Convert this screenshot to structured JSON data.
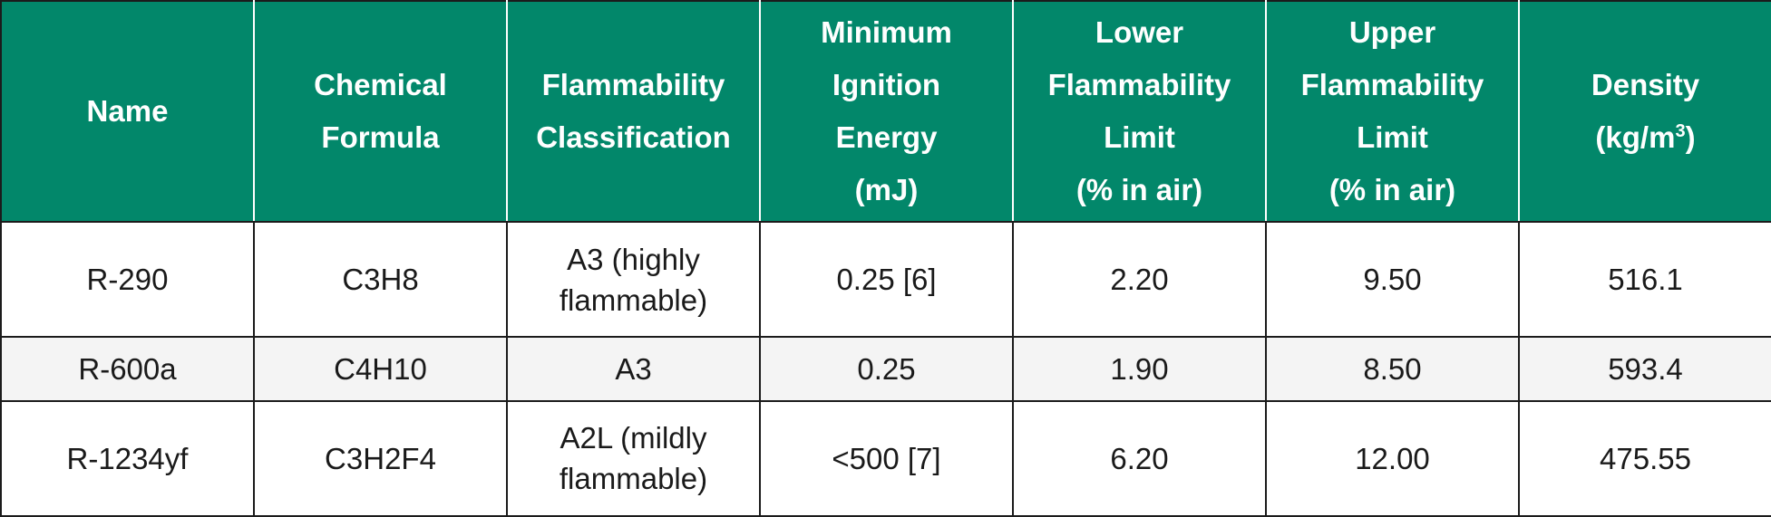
{
  "colors": {
    "header_background": "#02876a",
    "header_text": "#ffffff",
    "alt_row_background": "#f4f4f4",
    "border": "#1b1b1b"
  },
  "table": {
    "headers": [
      "Name",
      "Chemical\nFormula",
      "Flammability\nClassification",
      "Minimum\nIgnition\nEnergy\n(mJ)",
      "Lower\nFlammability\nLimit\n(% in air)",
      "Upper\nFlammability\nLimit\n(% in air)"
    ],
    "density_header": {
      "line1": "Density",
      "line2_prefix": "(kg/m",
      "line2_superscript": "3",
      "line2_suffix": ")"
    },
    "rows": [
      [
        "R-290",
        "C3H8",
        "A3 (highly\nflammable)",
        "0.25 [6]",
        "2.20",
        "9.50",
        "516.1"
      ],
      [
        "R-600a",
        "C4H10",
        "A3",
        "0.25",
        "1.90",
        "8.50",
        "593.4"
      ],
      [
        "R-1234yf",
        "C3H2F4",
        "A2L (mildly\nflammable)",
        "<500 [7]",
        "6.20",
        "12.00",
        "475.55"
      ]
    ]
  }
}
